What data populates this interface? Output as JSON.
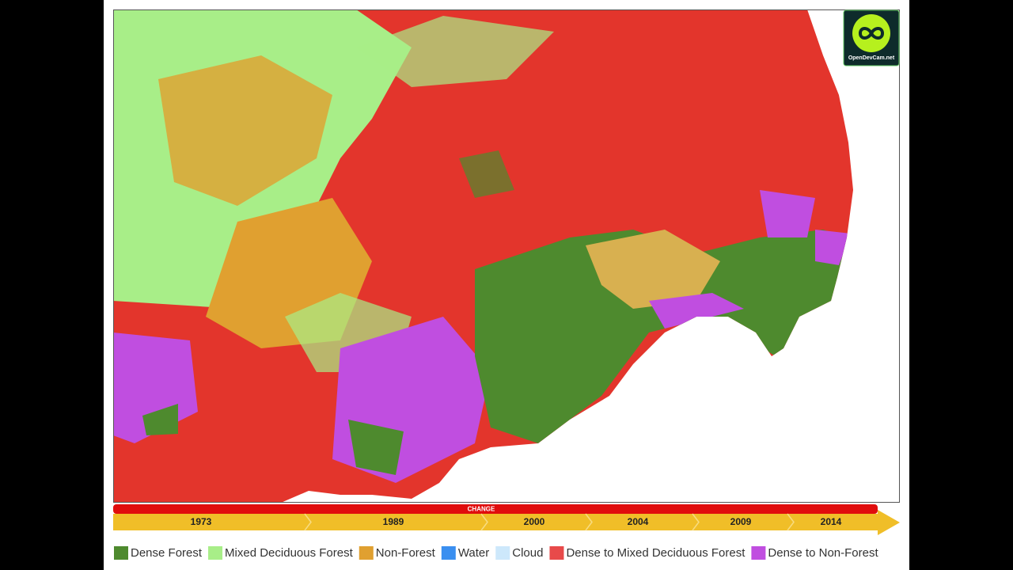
{
  "logo": {
    "text": "OpenDevCam.net"
  },
  "timeline": {
    "label": "CHANGE",
    "years": [
      "1973",
      "1989",
      "2000",
      "2004",
      "2009",
      "2014"
    ]
  },
  "legend": [
    {
      "name": "Dense Forest",
      "color": "#4e8a2e"
    },
    {
      "name": "Mixed Deciduous Forest",
      "color": "#a8ee88"
    },
    {
      "name": "Non-Forest",
      "color": "#e0a030"
    },
    {
      "name": "Water",
      "color": "#3a8ff0"
    },
    {
      "name": "Cloud",
      "color": "#cde8fb"
    },
    {
      "name": "Dense to Mixed Deciduous Forest",
      "color": "#e84a4a"
    },
    {
      "name": "Dense to Non-Forest",
      "color": "#c04ee0"
    }
  ]
}
